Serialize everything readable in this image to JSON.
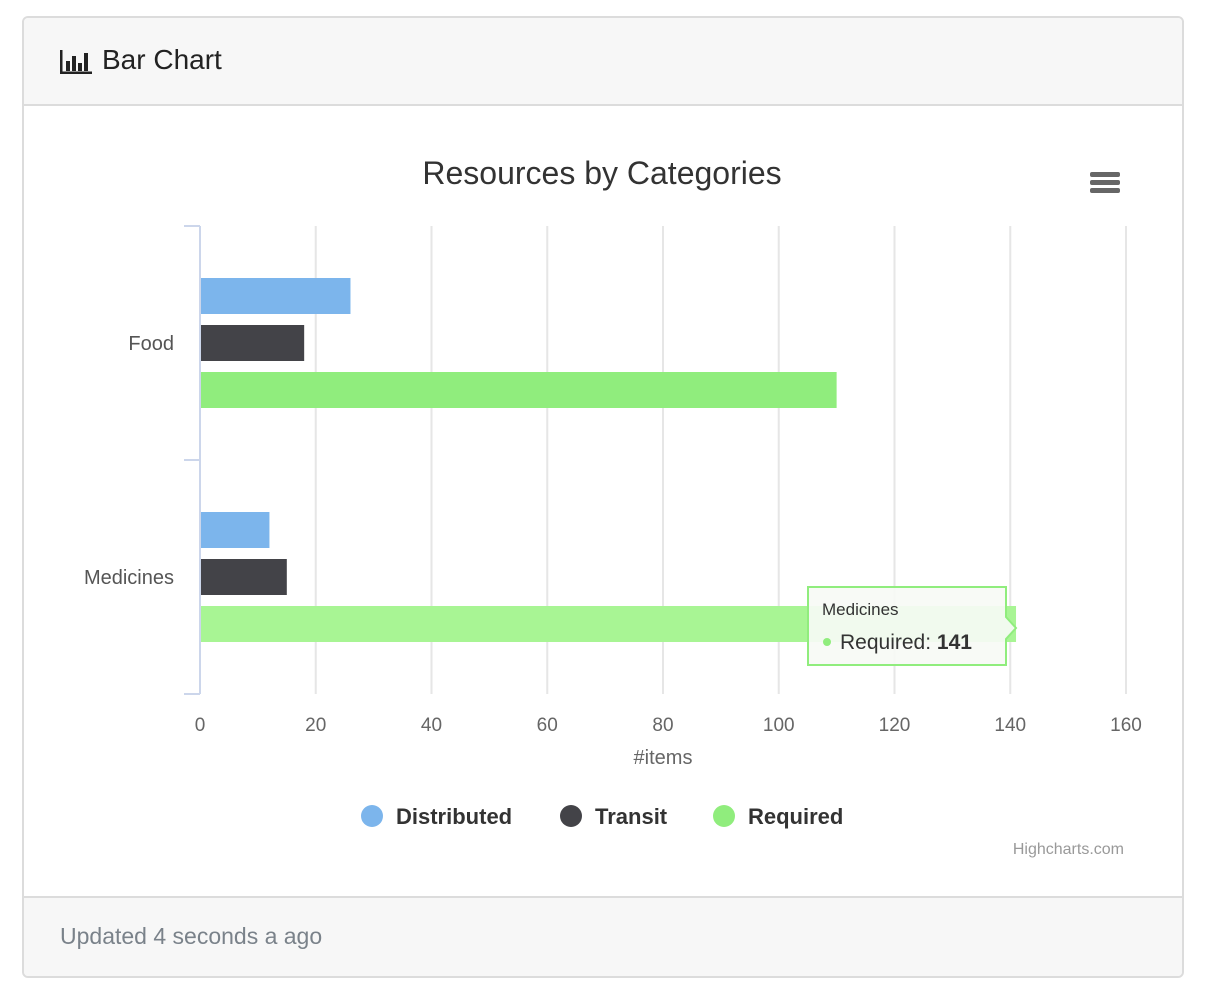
{
  "header": {
    "title": "Bar Chart",
    "icon": "bar-chart-icon"
  },
  "footer": {
    "status": "Updated 4 seconds a ago"
  },
  "menu": {
    "icon": "hamburger-menu-icon"
  },
  "credits": "Highcharts.com",
  "tooltip": {
    "category": "Medicines",
    "series": "Required",
    "value": "141",
    "separator": ": ",
    "color": "#90ed7d"
  },
  "colors": {
    "accent": "#90ed7d",
    "distributed": "#7cb5ec",
    "transit": "#434348",
    "required": "#90ed7d"
  },
  "chart_data": {
    "type": "bar",
    "orientation": "horizontal",
    "title": "Resources by Categories",
    "categories": [
      "Food",
      "Medicines"
    ],
    "series": [
      {
        "name": "Distributed",
        "values": [
          26,
          12
        ],
        "color": "#7cb5ec"
      },
      {
        "name": "Transit",
        "values": [
          18,
          15
        ],
        "color": "#434348"
      },
      {
        "name": "Required",
        "values": [
          110,
          141
        ],
        "color": "#90ed7d"
      }
    ],
    "xlabel": "#items",
    "ylabel": "",
    "xlim": [
      0,
      160
    ],
    "ticks": [
      "0",
      "20",
      "40",
      "60",
      "80",
      "100",
      "120",
      "140",
      "160"
    ],
    "grid": true,
    "legend_position": "bottom-center"
  }
}
